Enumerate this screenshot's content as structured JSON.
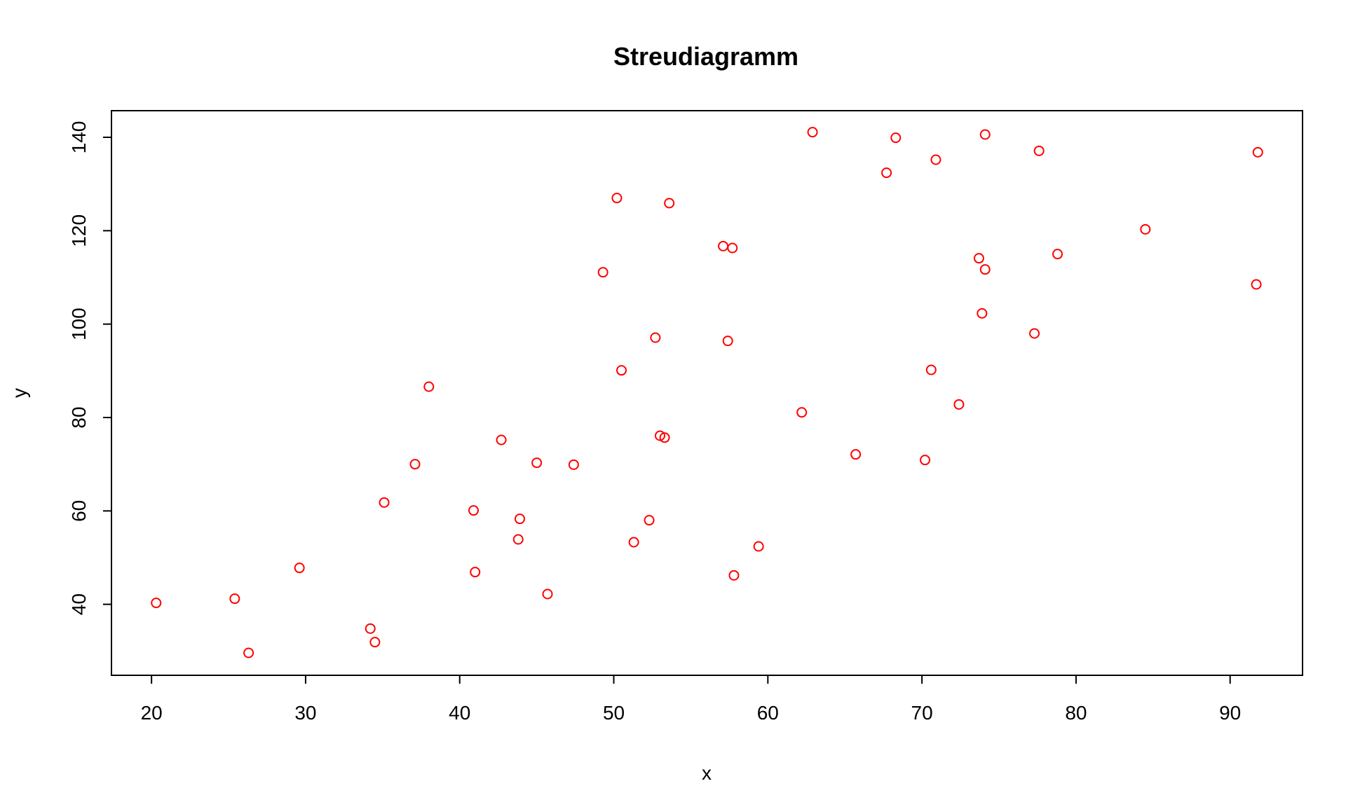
{
  "chart_data": {
    "type": "scatter",
    "title": "Streudiagramm",
    "xlabel": "x",
    "ylabel": "y",
    "xlim": [
      17.4,
      94.7
    ],
    "ylim": [
      24.8,
      145.7
    ],
    "xticks": [
      20,
      30,
      40,
      50,
      60,
      70,
      80,
      90
    ],
    "yticks": [
      40,
      60,
      80,
      100,
      120,
      140
    ],
    "grid": false,
    "legend": "none",
    "point_color": "#ff0000",
    "series": [
      {
        "x": [
          20.3,
          25.4,
          26.3,
          29.6,
          34.2,
          34.5,
          35.1,
          37.1,
          38.0,
          40.9,
          41.0,
          42.7,
          43.8,
          43.9,
          45.0,
          45.7,
          47.4,
          49.3,
          50.2,
          50.5,
          51.3,
          52.3,
          52.7,
          53.0,
          53.3,
          53.6,
          57.1,
          57.4,
          57.7,
          57.8,
          59.4,
          62.2,
          62.9,
          65.7,
          67.7,
          68.3,
          70.2,
          70.6,
          70.9,
          72.4,
          73.7,
          73.9,
          74.1,
          74.1,
          77.3,
          77.6,
          78.8,
          84.5,
          91.7,
          91.8
        ],
        "y": [
          40.3,
          41.2,
          29.6,
          47.8,
          34.8,
          31.9,
          61.8,
          70.0,
          86.6,
          60.1,
          46.9,
          75.2,
          53.9,
          58.3,
          70.3,
          42.2,
          69.9,
          111.1,
          127.0,
          90.1,
          53.3,
          58.0,
          97.1,
          76.1,
          75.7,
          125.9,
          116.7,
          96.4,
          116.3,
          46.2,
          52.4,
          81.1,
          141.1,
          72.1,
          132.4,
          139.9,
          70.9,
          90.2,
          135.2,
          82.8,
          114.1,
          102.3,
          140.6,
          111.7,
          98.0,
          137.1,
          115.0,
          120.3,
          108.5,
          136.8
        ]
      }
    ]
  }
}
